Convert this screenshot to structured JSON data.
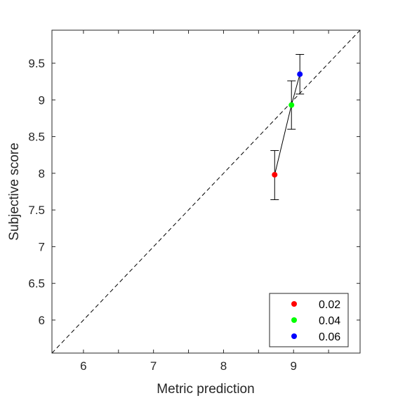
{
  "chart_data": {
    "type": "scatter",
    "title": "",
    "xlabel": "Metric prediction",
    "ylabel": "Subjective score",
    "xlim": [
      5.55,
      9.95
    ],
    "ylim": [
      5.55,
      9.95
    ],
    "x_ticks": [
      6,
      6.5,
      7,
      7.5,
      8,
      8.5,
      9,
      9.5
    ],
    "x_tick_labels": [
      "6",
      "",
      "7",
      "",
      "8",
      "",
      "9",
      ""
    ],
    "y_ticks": [
      6,
      6.5,
      7,
      7.5,
      8,
      8.5,
      9,
      9.5
    ],
    "y_tick_labels": [
      "6",
      "6.5",
      "7",
      "7.5",
      "8",
      "8.5",
      "9",
      "9.5"
    ],
    "grid": false,
    "reference_line": {
      "style": "dashed",
      "color": "#000000",
      "from": [
        5.55,
        5.55
      ],
      "to": [
        9.95,
        9.95
      ]
    },
    "connecting_line_color": "#000000",
    "series": [
      {
        "name": "0.02",
        "color": "#ff0000",
        "x": 8.73,
        "y": 7.98,
        "err_low": 7.64,
        "err_high": 8.31
      },
      {
        "name": "0.04",
        "color": "#00ff00",
        "x": 8.97,
        "y": 8.93,
        "err_low": 8.6,
        "err_high": 9.26
      },
      {
        "name": "0.06",
        "color": "#0000ff",
        "x": 9.09,
        "y": 9.35,
        "err_low": 9.08,
        "err_high": 9.62
      }
    ],
    "legend": {
      "placement": "bottom-right",
      "entries": [
        "0.02",
        "0.04",
        "0.06"
      ]
    }
  }
}
